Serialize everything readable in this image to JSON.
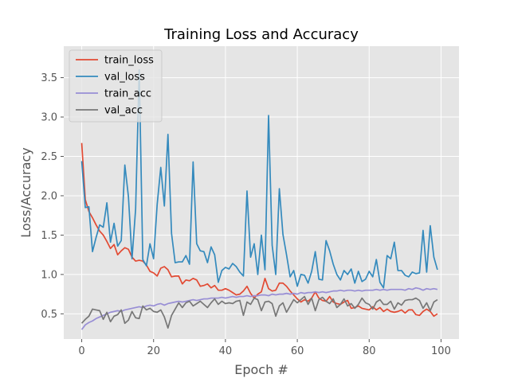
{
  "chart_data": {
    "type": "line",
    "title": "Training Loss and Accuracy",
    "xlabel": "Epoch #",
    "ylabel": "Loss/Accuracy",
    "xlim": [
      -5,
      105
    ],
    "ylim": [
      0.18,
      3.9
    ],
    "xticks": [
      0,
      20,
      40,
      60,
      80,
      100
    ],
    "yticks": [
      0.5,
      1.0,
      1.5,
      2.0,
      2.5,
      3.0,
      3.5
    ],
    "ytick_labels": [
      "0.5",
      "1.0",
      "1.5",
      "2.0",
      "2.5",
      "3.0",
      "3.5"
    ],
    "grid": true,
    "legend_position": "top-left",
    "background": "#e5e5e5",
    "series": [
      {
        "name": "train_loss",
        "color": "#e24a33",
        "values": [
          2.67,
          1.95,
          1.8,
          1.72,
          1.63,
          1.55,
          1.5,
          1.42,
          1.33,
          1.38,
          1.25,
          1.3,
          1.34,
          1.32,
          1.22,
          1.17,
          1.18,
          1.17,
          1.12,
          1.04,
          1.02,
          0.98,
          1.08,
          1.1,
          1.06,
          0.97,
          0.98,
          0.98,
          0.88,
          0.93,
          0.92,
          0.95,
          0.93,
          0.85,
          0.86,
          0.88,
          0.83,
          0.86,
          0.8,
          0.8,
          0.82,
          0.8,
          0.77,
          0.74,
          0.75,
          0.79,
          0.85,
          0.76,
          0.7,
          0.75,
          0.78,
          0.95,
          0.82,
          0.79,
          0.8,
          0.89,
          0.89,
          0.85,
          0.79,
          0.74,
          0.69,
          0.65,
          0.68,
          0.66,
          0.7,
          0.78,
          0.7,
          0.67,
          0.66,
          0.72,
          0.65,
          0.63,
          0.62,
          0.65,
          0.67,
          0.57,
          0.58,
          0.6,
          0.57,
          0.56,
          0.55,
          0.59,
          0.55,
          0.58,
          0.53,
          0.56,
          0.53,
          0.52,
          0.53,
          0.55,
          0.51,
          0.55,
          0.55,
          0.49,
          0.48,
          0.53,
          0.56,
          0.53,
          0.47,
          0.5
        ]
      },
      {
        "name": "val_loss",
        "color": "#348abd",
        "values": [
          2.44,
          1.85,
          1.86,
          1.29,
          1.47,
          1.63,
          1.6,
          1.91,
          1.41,
          1.65,
          1.36,
          1.43,
          2.39,
          1.99,
          1.2,
          1.83,
          3.6,
          1.19,
          1.11,
          1.39,
          1.2,
          1.89,
          2.36,
          1.87,
          2.78,
          1.52,
          1.15,
          1.16,
          1.16,
          1.24,
          1.13,
          2.43,
          1.39,
          1.3,
          1.29,
          1.15,
          1.35,
          1.25,
          0.9,
          1.05,
          1.09,
          1.07,
          1.14,
          1.1,
          1.03,
          0.98,
          2.06,
          1.22,
          1.39,
          1.0,
          1.5,
          1.06,
          3.02,
          1.37,
          1.0,
          2.09,
          1.51,
          1.25,
          0.97,
          1.05,
          0.85,
          1.0,
          0.99,
          0.89,
          1.04,
          1.29,
          0.94,
          0.93,
          1.43,
          1.3,
          1.13,
          1.0,
          0.93,
          1.05,
          1.0,
          1.07,
          0.89,
          1.04,
          0.91,
          0.94,
          1.04,
          0.97,
          1.19,
          0.9,
          0.83,
          1.24,
          1.2,
          1.41,
          1.05,
          1.05,
          0.99,
          0.97,
          1.03,
          1.01,
          1.02,
          1.56,
          1.03,
          1.62,
          1.22,
          1.06
        ]
      },
      {
        "name": "train_acc",
        "color": "#988ed5",
        "values": [
          0.3,
          0.36,
          0.39,
          0.41,
          0.44,
          0.46,
          0.48,
          0.5,
          0.52,
          0.53,
          0.54,
          0.53,
          0.55,
          0.56,
          0.57,
          0.58,
          0.59,
          0.58,
          0.6,
          0.61,
          0.6,
          0.62,
          0.63,
          0.61,
          0.63,
          0.64,
          0.65,
          0.66,
          0.65,
          0.66,
          0.67,
          0.68,
          0.67,
          0.68,
          0.69,
          0.69,
          0.7,
          0.7,
          0.7,
          0.71,
          0.7,
          0.71,
          0.72,
          0.71,
          0.72,
          0.72,
          0.73,
          0.72,
          0.73,
          0.73,
          0.74,
          0.74,
          0.73,
          0.75,
          0.74,
          0.75,
          0.75,
          0.76,
          0.75,
          0.76,
          0.75,
          0.77,
          0.76,
          0.77,
          0.77,
          0.78,
          0.77,
          0.78,
          0.77,
          0.78,
          0.79,
          0.79,
          0.8,
          0.79,
          0.8,
          0.8,
          0.79,
          0.8,
          0.79,
          0.8,
          0.8,
          0.8,
          0.81,
          0.8,
          0.81,
          0.8,
          0.81,
          0.81,
          0.81,
          0.81,
          0.8,
          0.82,
          0.81,
          0.83,
          0.82,
          0.8,
          0.82,
          0.81,
          0.82,
          0.81
        ]
      },
      {
        "name": "val_acc",
        "color": "#777777",
        "values": [
          0.38,
          0.43,
          0.47,
          0.56,
          0.55,
          0.54,
          0.43,
          0.52,
          0.4,
          0.47,
          0.49,
          0.55,
          0.38,
          0.42,
          0.53,
          0.45,
          0.44,
          0.6,
          0.55,
          0.57,
          0.53,
          0.52,
          0.55,
          0.46,
          0.32,
          0.48,
          0.56,
          0.64,
          0.58,
          0.64,
          0.66,
          0.6,
          0.63,
          0.66,
          0.62,
          0.58,
          0.64,
          0.69,
          0.62,
          0.66,
          0.63,
          0.64,
          0.63,
          0.66,
          0.67,
          0.48,
          0.65,
          0.62,
          0.7,
          0.68,
          0.54,
          0.65,
          0.66,
          0.63,
          0.47,
          0.6,
          0.64,
          0.52,
          0.6,
          0.68,
          0.64,
          0.68,
          0.72,
          0.62,
          0.7,
          0.54,
          0.68,
          0.71,
          0.66,
          0.63,
          0.69,
          0.58,
          0.62,
          0.69,
          0.6,
          0.63,
          0.57,
          0.62,
          0.7,
          0.64,
          0.62,
          0.56,
          0.65,
          0.68,
          0.62,
          0.62,
          0.66,
          0.56,
          0.64,
          0.61,
          0.67,
          0.68,
          0.68,
          0.7,
          0.67,
          0.57,
          0.64,
          0.54,
          0.65,
          0.68
        ]
      }
    ]
  }
}
